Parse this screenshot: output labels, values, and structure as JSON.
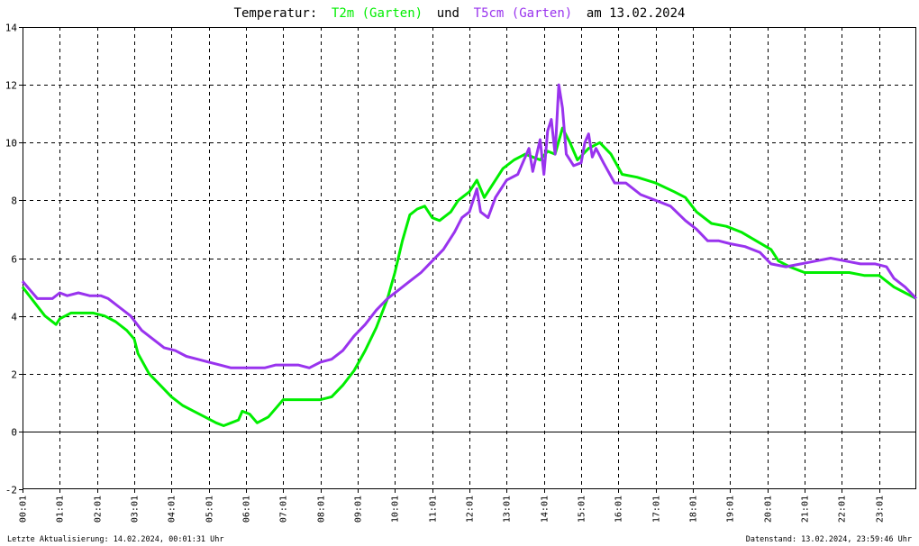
{
  "chart_data": {
    "type": "line",
    "title": {
      "prefix": "Temperatur:",
      "series1": "T2m (Garten)",
      "conj": "und",
      "series2": "T5cm (Garten)",
      "suffix": "am 13.02.2024"
    },
    "colors": {
      "T2m": "#00ee00",
      "T5cm": "#9933ee",
      "grid": "#000000",
      "background": "#ffffff"
    },
    "xlabels": [
      "00:01",
      "01:01",
      "02:01",
      "03:01",
      "04:01",
      "05:01",
      "06:01",
      "07:01",
      "08:01",
      "09:01",
      "10:01",
      "11:01",
      "12:01",
      "13:01",
      "14:01",
      "15:01",
      "16:01",
      "17:01",
      "18:01",
      "19:01",
      "20:01",
      "21:01",
      "22:01",
      "23:01"
    ],
    "xlim": [
      0,
      24
    ],
    "yticks": [
      -2,
      0,
      2,
      4,
      6,
      8,
      10,
      12,
      14
    ],
    "ylim": [
      -2,
      14
    ],
    "grid": true,
    "series": [
      {
        "name": "T2m (Garten)",
        "color": "#00ee00",
        "points": [
          [
            0,
            5.0
          ],
          [
            0.3,
            4.5
          ],
          [
            0.6,
            4.0
          ],
          [
            0.9,
            3.7
          ],
          [
            1.0,
            3.9
          ],
          [
            1.3,
            4.1
          ],
          [
            1.6,
            4.1
          ],
          [
            1.9,
            4.1
          ],
          [
            2.2,
            4.0
          ],
          [
            2.5,
            3.8
          ],
          [
            2.8,
            3.5
          ],
          [
            3.0,
            3.2
          ],
          [
            3.1,
            2.7
          ],
          [
            3.4,
            2.0
          ],
          [
            3.7,
            1.6
          ],
          [
            4.0,
            1.2
          ],
          [
            4.3,
            0.9
          ],
          [
            4.6,
            0.7
          ],
          [
            4.9,
            0.5
          ],
          [
            5.2,
            0.3
          ],
          [
            5.4,
            0.2
          ],
          [
            5.6,
            0.3
          ],
          [
            5.8,
            0.4
          ],
          [
            5.9,
            0.7
          ],
          [
            6.1,
            0.6
          ],
          [
            6.3,
            0.3
          ],
          [
            6.6,
            0.5
          ],
          [
            6.8,
            0.8
          ],
          [
            7.0,
            1.1
          ],
          [
            7.3,
            1.1
          ],
          [
            7.6,
            1.1
          ],
          [
            8.0,
            1.1
          ],
          [
            8.3,
            1.2
          ],
          [
            8.6,
            1.6
          ],
          [
            8.9,
            2.1
          ],
          [
            9.2,
            2.8
          ],
          [
            9.5,
            3.6
          ],
          [
            9.8,
            4.6
          ],
          [
            10.0,
            5.5
          ],
          [
            10.2,
            6.6
          ],
          [
            10.4,
            7.5
          ],
          [
            10.6,
            7.7
          ],
          [
            10.8,
            7.8
          ],
          [
            11.0,
            7.4
          ],
          [
            11.2,
            7.3
          ],
          [
            11.5,
            7.6
          ],
          [
            11.7,
            8.0
          ],
          [
            12.0,
            8.3
          ],
          [
            12.2,
            8.7
          ],
          [
            12.4,
            8.1
          ],
          [
            12.6,
            8.5
          ],
          [
            12.9,
            9.1
          ],
          [
            13.2,
            9.4
          ],
          [
            13.5,
            9.6
          ],
          [
            13.7,
            9.5
          ],
          [
            13.9,
            9.4
          ],
          [
            14.1,
            9.7
          ],
          [
            14.3,
            9.6
          ],
          [
            14.5,
            10.5
          ],
          [
            14.7,
            10.0
          ],
          [
            14.9,
            9.4
          ],
          [
            15.2,
            9.8
          ],
          [
            15.5,
            10.0
          ],
          [
            15.8,
            9.6
          ],
          [
            16.1,
            8.9
          ],
          [
            16.5,
            8.8
          ],
          [
            17.0,
            8.6
          ],
          [
            17.5,
            8.3
          ],
          [
            17.8,
            8.1
          ],
          [
            18.1,
            7.6
          ],
          [
            18.5,
            7.2
          ],
          [
            18.9,
            7.1
          ],
          [
            19.3,
            6.9
          ],
          [
            19.7,
            6.6
          ],
          [
            20.1,
            6.3
          ],
          [
            20.3,
            5.9
          ],
          [
            20.6,
            5.7
          ],
          [
            21.0,
            5.5
          ],
          [
            21.4,
            5.5
          ],
          [
            21.8,
            5.5
          ],
          [
            22.2,
            5.5
          ],
          [
            22.6,
            5.4
          ],
          [
            23.0,
            5.4
          ],
          [
            23.4,
            5.0
          ],
          [
            23.7,
            4.8
          ],
          [
            24.0,
            4.6
          ]
        ]
      },
      {
        "name": "T5cm (Garten)",
        "color": "#9933ee",
        "points": [
          [
            0,
            5.2
          ],
          [
            0.2,
            4.9
          ],
          [
            0.4,
            4.6
          ],
          [
            0.6,
            4.6
          ],
          [
            0.8,
            4.6
          ],
          [
            1.0,
            4.8
          ],
          [
            1.2,
            4.7
          ],
          [
            1.5,
            4.8
          ],
          [
            1.8,
            4.7
          ],
          [
            2.1,
            4.7
          ],
          [
            2.3,
            4.6
          ],
          [
            2.6,
            4.3
          ],
          [
            2.9,
            4.0
          ],
          [
            3.2,
            3.5
          ],
          [
            3.5,
            3.2
          ],
          [
            3.8,
            2.9
          ],
          [
            4.1,
            2.8
          ],
          [
            4.4,
            2.6
          ],
          [
            4.7,
            2.5
          ],
          [
            5.0,
            2.4
          ],
          [
            5.3,
            2.3
          ],
          [
            5.6,
            2.2
          ],
          [
            5.9,
            2.2
          ],
          [
            6.2,
            2.2
          ],
          [
            6.5,
            2.2
          ],
          [
            6.8,
            2.3
          ],
          [
            7.1,
            2.3
          ],
          [
            7.4,
            2.3
          ],
          [
            7.7,
            2.2
          ],
          [
            8.0,
            2.4
          ],
          [
            8.3,
            2.5
          ],
          [
            8.6,
            2.8
          ],
          [
            8.9,
            3.3
          ],
          [
            9.2,
            3.7
          ],
          [
            9.5,
            4.2
          ],
          [
            9.8,
            4.6
          ],
          [
            10.1,
            4.9
          ],
          [
            10.4,
            5.2
          ],
          [
            10.7,
            5.5
          ],
          [
            11.0,
            5.9
          ],
          [
            11.3,
            6.3
          ],
          [
            11.6,
            6.9
          ],
          [
            11.8,
            7.4
          ],
          [
            12.0,
            7.6
          ],
          [
            12.2,
            8.4
          ],
          [
            12.3,
            7.6
          ],
          [
            12.5,
            7.4
          ],
          [
            12.7,
            8.1
          ],
          [
            13.0,
            8.7
          ],
          [
            13.3,
            8.9
          ],
          [
            13.6,
            9.8
          ],
          [
            13.7,
            9.0
          ],
          [
            13.9,
            10.1
          ],
          [
            14.0,
            8.9
          ],
          [
            14.1,
            10.4
          ],
          [
            14.2,
            10.8
          ],
          [
            14.3,
            9.6
          ],
          [
            14.4,
            12.0
          ],
          [
            14.5,
            11.2
          ],
          [
            14.6,
            9.6
          ],
          [
            14.8,
            9.2
          ],
          [
            15.0,
            9.3
          ],
          [
            15.1,
            10.0
          ],
          [
            15.2,
            10.3
          ],
          [
            15.3,
            9.5
          ],
          [
            15.4,
            9.8
          ],
          [
            15.6,
            9.3
          ],
          [
            15.9,
            8.6
          ],
          [
            16.2,
            8.6
          ],
          [
            16.6,
            8.2
          ],
          [
            17.0,
            8.0
          ],
          [
            17.4,
            7.8
          ],
          [
            17.8,
            7.3
          ],
          [
            18.1,
            7.0
          ],
          [
            18.4,
            6.6
          ],
          [
            18.7,
            6.6
          ],
          [
            19.0,
            6.5
          ],
          [
            19.4,
            6.4
          ],
          [
            19.8,
            6.2
          ],
          [
            20.1,
            5.8
          ],
          [
            20.5,
            5.7
          ],
          [
            20.9,
            5.8
          ],
          [
            21.3,
            5.9
          ],
          [
            21.7,
            6.0
          ],
          [
            22.1,
            5.9
          ],
          [
            22.5,
            5.8
          ],
          [
            22.9,
            5.8
          ],
          [
            23.2,
            5.7
          ],
          [
            23.4,
            5.3
          ],
          [
            23.7,
            5.0
          ],
          [
            24.0,
            4.6
          ]
        ]
      }
    ]
  },
  "footer": {
    "left": "Letzte Aktualisierung: 14.02.2024, 00:01:31 Uhr",
    "right": "Datenstand: 13.02.2024, 23:59:46 Uhr"
  }
}
